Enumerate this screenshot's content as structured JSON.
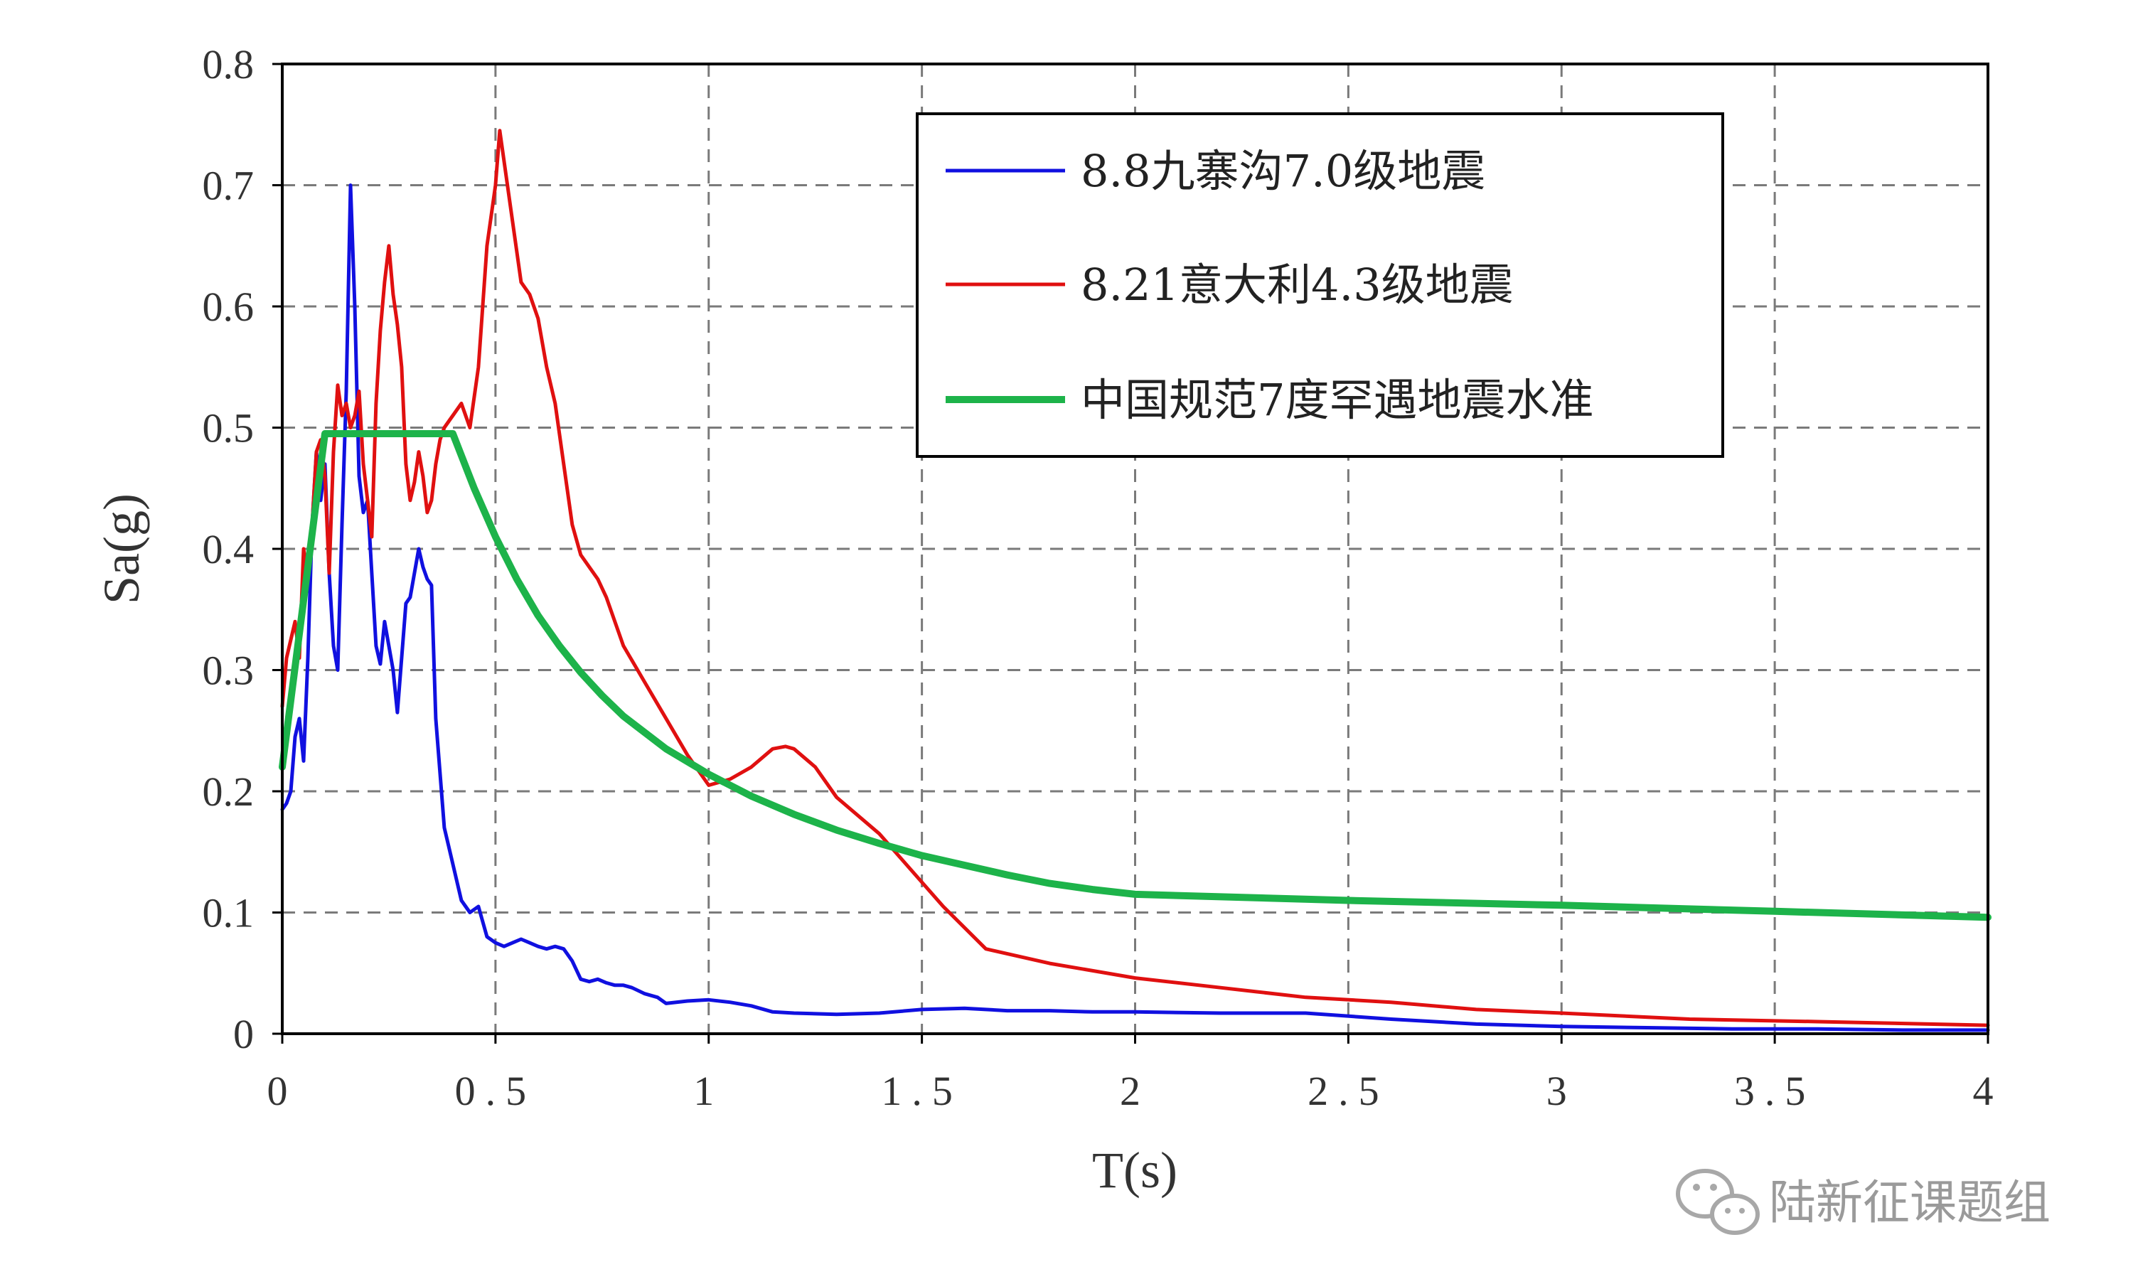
{
  "chart_data": {
    "type": "line",
    "title": "",
    "xlabel": "T(s)",
    "ylabel": "Sa(g)",
    "xlim": [
      0,
      4
    ],
    "ylim": [
      0,
      0.8
    ],
    "x_ticks": [
      0,
      0.5,
      1,
      1.5,
      2,
      2.5,
      3,
      3.5,
      4
    ],
    "x_tick_labels": [
      "0",
      "0.5",
      "1",
      "1.5",
      "2",
      "2.5",
      "3",
      "3.5",
      "4"
    ],
    "y_ticks": [
      0,
      0.1,
      0.2,
      0.3,
      0.4,
      0.5,
      0.6,
      0.7,
      0.8
    ],
    "y_tick_labels": [
      "0",
      "0.1",
      "0.2",
      "0.3",
      "0.4",
      "0.5",
      "0.6",
      "0.7",
      "0.8"
    ],
    "grid": true,
    "grid_style": "dashed",
    "legend_position": "top-right",
    "series": [
      {
        "name": "8.8九寨沟7.0级地震",
        "color": "#1010e0",
        "x": [
          0,
          0.01,
          0.02,
          0.03,
          0.04,
          0.05,
          0.06,
          0.07,
          0.08,
          0.09,
          0.1,
          0.11,
          0.12,
          0.13,
          0.14,
          0.15,
          0.16,
          0.17,
          0.18,
          0.19,
          0.2,
          0.21,
          0.22,
          0.23,
          0.24,
          0.25,
          0.26,
          0.27,
          0.28,
          0.29,
          0.3,
          0.31,
          0.32,
          0.33,
          0.34,
          0.35,
          0.36,
          0.38,
          0.4,
          0.41,
          0.42,
          0.43,
          0.44,
          0.46,
          0.48,
          0.5,
          0.52,
          0.54,
          0.56,
          0.58,
          0.6,
          0.62,
          0.64,
          0.66,
          0.68,
          0.7,
          0.72,
          0.74,
          0.76,
          0.78,
          0.8,
          0.82,
          0.85,
          0.88,
          0.9,
          0.95,
          1.0,
          1.05,
          1.1,
          1.15,
          1.2,
          1.3,
          1.4,
          1.5,
          1.6,
          1.7,
          1.8,
          1.9,
          2.0,
          2.2,
          2.4,
          2.6,
          2.8,
          3.0,
          3.2,
          3.4,
          3.6,
          3.8,
          4.0
        ],
        "values": [
          0.185,
          0.19,
          0.2,
          0.245,
          0.26,
          0.225,
          0.31,
          0.42,
          0.48,
          0.44,
          0.47,
          0.38,
          0.32,
          0.3,
          0.42,
          0.53,
          0.7,
          0.6,
          0.46,
          0.43,
          0.44,
          0.38,
          0.32,
          0.305,
          0.34,
          0.32,
          0.3,
          0.265,
          0.31,
          0.355,
          0.36,
          0.38,
          0.4,
          0.385,
          0.375,
          0.37,
          0.26,
          0.17,
          0.14,
          0.125,
          0.11,
          0.105,
          0.1,
          0.105,
          0.08,
          0.075,
          0.072,
          0.075,
          0.078,
          0.075,
          0.072,
          0.07,
          0.072,
          0.07,
          0.06,
          0.045,
          0.043,
          0.045,
          0.042,
          0.04,
          0.04,
          0.038,
          0.033,
          0.03,
          0.025,
          0.027,
          0.028,
          0.026,
          0.023,
          0.018,
          0.017,
          0.016,
          0.017,
          0.02,
          0.021,
          0.019,
          0.019,
          0.018,
          0.018,
          0.017,
          0.017,
          0.012,
          0.008,
          0.006,
          0.005,
          0.004,
          0.004,
          0.003,
          0.003
        ]
      },
      {
        "name": "8.21意大利4.3级地震",
        "color": "#e01010",
        "x": [
          0,
          0.01,
          0.02,
          0.03,
          0.04,
          0.05,
          0.06,
          0.07,
          0.08,
          0.09,
          0.1,
          0.11,
          0.12,
          0.13,
          0.14,
          0.15,
          0.16,
          0.17,
          0.18,
          0.19,
          0.2,
          0.21,
          0.22,
          0.23,
          0.24,
          0.25,
          0.26,
          0.27,
          0.28,
          0.29,
          0.3,
          0.31,
          0.32,
          0.33,
          0.34,
          0.35,
          0.36,
          0.37,
          0.38,
          0.39,
          0.4,
          0.42,
          0.44,
          0.46,
          0.48,
          0.5,
          0.51,
          0.52,
          0.54,
          0.56,
          0.58,
          0.6,
          0.62,
          0.64,
          0.66,
          0.68,
          0.7,
          0.72,
          0.74,
          0.76,
          0.78,
          0.8,
          0.85,
          0.9,
          0.95,
          1.0,
          1.05,
          1.1,
          1.15,
          1.18,
          1.2,
          1.25,
          1.3,
          1.4,
          1.5,
          1.55,
          1.65,
          1.8,
          2.0,
          2.2,
          2.4,
          2.6,
          2.8,
          3.0,
          3.3,
          3.6,
          4.0
        ],
        "values": [
          0.27,
          0.31,
          0.325,
          0.34,
          0.31,
          0.4,
          0.375,
          0.42,
          0.48,
          0.49,
          0.46,
          0.38,
          0.48,
          0.535,
          0.51,
          0.52,
          0.5,
          0.51,
          0.53,
          0.47,
          0.44,
          0.41,
          0.52,
          0.58,
          0.62,
          0.65,
          0.61,
          0.585,
          0.55,
          0.47,
          0.44,
          0.455,
          0.48,
          0.46,
          0.43,
          0.44,
          0.47,
          0.49,
          0.5,
          0.505,
          0.51,
          0.52,
          0.5,
          0.55,
          0.65,
          0.7,
          0.745,
          0.72,
          0.67,
          0.62,
          0.61,
          0.59,
          0.55,
          0.52,
          0.47,
          0.42,
          0.395,
          0.385,
          0.375,
          0.36,
          0.34,
          0.32,
          0.29,
          0.26,
          0.23,
          0.205,
          0.21,
          0.22,
          0.235,
          0.237,
          0.235,
          0.22,
          0.195,
          0.165,
          0.125,
          0.105,
          0.07,
          0.058,
          0.046,
          0.038,
          0.03,
          0.026,
          0.02,
          0.017,
          0.012,
          0.01,
          0.007
        ]
      },
      {
        "name": "中国规范7度罕遇地震水准",
        "color": "#1db34a",
        "x": [
          0,
          0.02,
          0.04,
          0.06,
          0.08,
          0.1,
          0.15,
          0.2,
          0.25,
          0.3,
          0.35,
          0.4,
          0.45,
          0.5,
          0.55,
          0.6,
          0.65,
          0.7,
          0.75,
          0.8,
          0.9,
          1.0,
          1.1,
          1.2,
          1.3,
          1.4,
          1.5,
          1.6,
          1.7,
          1.8,
          1.9,
          2.0,
          2.5,
          3.0,
          3.5,
          4.0
        ],
        "values": [
          0.22,
          0.275,
          0.33,
          0.385,
          0.44,
          0.495,
          0.495,
          0.495,
          0.495,
          0.495,
          0.495,
          0.495,
          0.45,
          0.41,
          0.375,
          0.345,
          0.32,
          0.298,
          0.279,
          0.262,
          0.235,
          0.214,
          0.196,
          0.181,
          0.168,
          0.157,
          0.147,
          0.139,
          0.131,
          0.124,
          0.119,
          0.115,
          0.11,
          0.106,
          0.101,
          0.096
        ]
      }
    ],
    "watermark": "陆新征课题组"
  }
}
